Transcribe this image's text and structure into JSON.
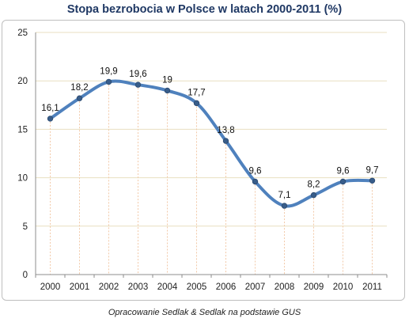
{
  "chart_data": {
    "type": "line",
    "title": "Stopa bezrobocia w Polsce w latach 2000-2011 (%)",
    "xlabel": "",
    "ylabel": "",
    "categories": [
      "2000",
      "2001",
      "2002",
      "2003",
      "2004",
      "2005",
      "2006",
      "2007",
      "2008",
      "2009",
      "2010",
      "2011"
    ],
    "series": [
      {
        "values": [
          16.1,
          18.2,
          19.9,
          19.6,
          19,
          17.7,
          13.8,
          9.6,
          7.1,
          8.2,
          9.6,
          9.7
        ]
      }
    ],
    "data_labels": [
      "16,1",
      "18,2",
      "19,9",
      "19,6",
      "19",
      "17,7",
      "13,8",
      "9,6",
      "7,1",
      "8,2",
      "9,6",
      "9,7"
    ],
    "ylim": [
      0,
      25
    ],
    "yticks": [
      0,
      5,
      10,
      15,
      20,
      25
    ],
    "grid": true,
    "smooth": true,
    "line_color": "#4f81bd",
    "marker_color": "#385d8a",
    "grid_color": "#e8dfc0",
    "drop_line_color": "#f2c9a8",
    "title_color": "#1f3864"
  },
  "source_note": "Opracowanie Sedlak & Sedlak na podstawie GUS"
}
